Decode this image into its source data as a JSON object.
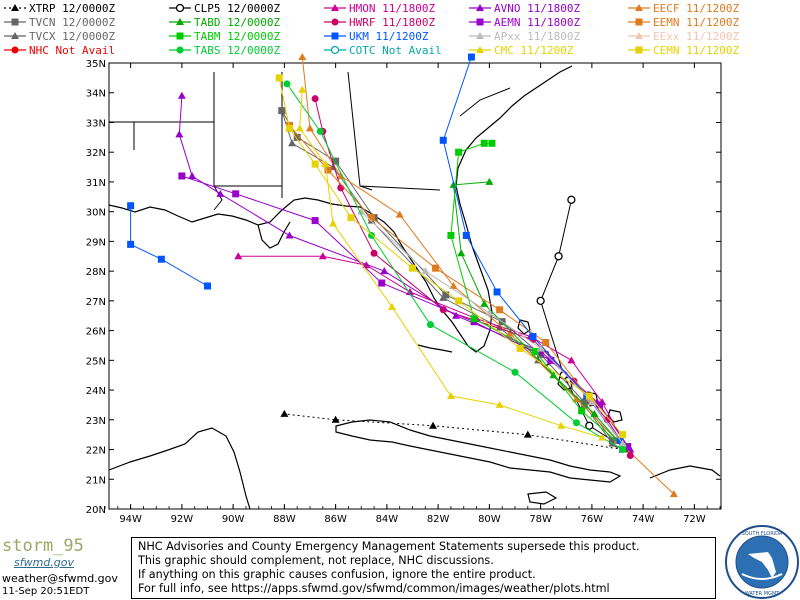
{
  "legend": [
    {
      "label": "XTRP  12/0000Z",
      "color": "#000000",
      "marker": "triangle",
      "dash": "2,3"
    },
    {
      "label": "CLP5  12/0000Z",
      "color": "#000000",
      "marker": "open-circle",
      "dash": ""
    },
    {
      "label": "HMON  11/1800Z",
      "color": "#cc0099",
      "marker": "triangle",
      "dash": ""
    },
    {
      "label": "AVNO  11/1800Z",
      "color": "#9900cc",
      "marker": "triangle",
      "dash": ""
    },
    {
      "label": "EECF  11/1200Z",
      "color": "#e07a1f",
      "marker": "triangle",
      "dash": ""
    },
    {
      "label": "TVCN  12/0000Z",
      "color": "#666666",
      "marker": "square",
      "dash": ""
    },
    {
      "label": "TABD  12/0000Z",
      "color": "#00aa00",
      "marker": "triangle",
      "dash": ""
    },
    {
      "label": "HWRF  11/1800Z",
      "color": "#cc0066",
      "marker": "circle",
      "dash": ""
    },
    {
      "label": "AEMN  11/1800Z",
      "color": "#9900cc",
      "marker": "square",
      "dash": ""
    },
    {
      "label": "EEMN  11/1200Z",
      "color": "#e07a1f",
      "marker": "square",
      "dash": ""
    },
    {
      "label": "TVCX  12/0000Z",
      "color": "#666666",
      "marker": "triangle",
      "dash": ""
    },
    {
      "label": "TABM  12/0000Z",
      "color": "#00cc00",
      "marker": "square",
      "dash": ""
    },
    {
      "label": "UKM   11/1200Z",
      "color": "#0055ff",
      "marker": "square",
      "dash": ""
    },
    {
      "label": "APxx  11/1800Z",
      "color": "#bbbbbb",
      "marker": "triangle",
      "dash": ""
    },
    {
      "label": "EExx  11/1200Z",
      "color": "#f4c6b0",
      "marker": "triangle",
      "dash": ""
    },
    {
      "label": "NHC Not Avail",
      "color": "#ee0000",
      "marker": "circle",
      "dash": ""
    },
    {
      "label": "TABS  12/0000Z",
      "color": "#00cc33",
      "marker": "circle",
      "dash": ""
    },
    {
      "label": "COTC  Not Avail",
      "color": "#00aaaa",
      "marker": "open-circle",
      "dash": ""
    },
    {
      "label": "CMC   11/1200Z",
      "color": "#e6d200",
      "marker": "triangle",
      "dash": ""
    },
    {
      "label": "CEMN  11/1200Z",
      "color": "#e6d200",
      "marker": "square",
      "dash": ""
    }
  ],
  "axes": {
    "lon_labels": [
      "94W",
      "92W",
      "90W",
      "88W",
      "86W",
      "84W",
      "82W",
      "80W",
      "78W",
      "76W",
      "74W",
      "72W"
    ],
    "lat_labels": [
      "35N",
      "34N",
      "33N",
      "32N",
      "31N",
      "30N",
      "29N",
      "28N",
      "27N",
      "26N",
      "25N",
      "24N",
      "23N",
      "22N",
      "21N",
      "20N"
    ],
    "lon_range": [
      -95,
      -71
    ],
    "lat_range": [
      20,
      35
    ]
  },
  "tracks": [
    {
      "model": "XTRP",
      "color": "#000000",
      "dash": "2,3",
      "marker": "triangle",
      "points": [
        [
          -74.8,
          22.0
        ],
        [
          -78.5,
          22.5
        ],
        [
          -82.2,
          22.8
        ],
        [
          -86.0,
          23.0
        ],
        [
          -88.0,
          23.2
        ]
      ]
    },
    {
      "model": "CLP5",
      "color": "#000000",
      "dash": "",
      "marker": "open-circle",
      "points": [
        [
          -75.0,
          22.2
        ],
        [
          -76.1,
          22.8
        ],
        [
          -77.1,
          24.5
        ],
        [
          -78.0,
          27.0
        ],
        [
          -77.3,
          28.5
        ],
        [
          -76.8,
          30.4
        ]
      ]
    },
    {
      "model": "TVCN",
      "color": "#666666",
      "dash": "",
      "marker": "square",
      "points": [
        [
          -75.2,
          22.3
        ],
        [
          -76.3,
          23.6
        ],
        [
          -78.0,
          25.2
        ],
        [
          -79.5,
          26.3
        ],
        [
          -81.7,
          27.2
        ],
        [
          -84.5,
          29.8
        ],
        [
          -86.0,
          31.7
        ],
        [
          -87.5,
          32.5
        ],
        [
          -88.1,
          33.4
        ]
      ]
    },
    {
      "model": "TVCX",
      "color": "#666666",
      "dash": "",
      "marker": "triangle",
      "points": [
        [
          -75.2,
          22.2
        ],
        [
          -76.3,
          23.5
        ],
        [
          -78.1,
          25.0
        ],
        [
          -79.6,
          26.1
        ],
        [
          -81.8,
          27.1
        ],
        [
          -84.6,
          29.7
        ],
        [
          -86.1,
          31.5
        ],
        [
          -87.7,
          32.3
        ],
        [
          -88.1,
          33.4
        ]
      ]
    },
    {
      "model": "HMON",
      "color": "#cc0099",
      "dash": "",
      "marker": "triangle",
      "points": [
        [
          -74.6,
          22.0
        ],
        [
          -75.6,
          23.6
        ],
        [
          -76.8,
          25.0
        ],
        [
          -78.4,
          25.8
        ],
        [
          -80.5,
          26.4
        ],
        [
          -83.1,
          27.3
        ],
        [
          -84.8,
          28.2
        ],
        [
          -86.5,
          28.5
        ],
        [
          -89.8,
          28.5
        ]
      ]
    },
    {
      "model": "AVNO",
      "color": "#9900cc",
      "dash": "",
      "marker": "triangle",
      "points": [
        [
          -74.5,
          22.0
        ],
        [
          -75.8,
          23.6
        ],
        [
          -78.0,
          25.3
        ],
        [
          -81.3,
          26.5
        ],
        [
          -84.1,
          28.0
        ],
        [
          -87.8,
          29.2
        ],
        [
          -90.5,
          30.6
        ],
        [
          -91.6,
          31.2
        ],
        [
          -92.1,
          32.6
        ],
        [
          -92.0,
          33.9
        ]
      ]
    },
    {
      "model": "EECF",
      "color": "#e07a1f",
      "dash": "",
      "marker": "triangle",
      "points": [
        [
          -72.8,
          20.5
        ],
        [
          -75.0,
          22.3
        ],
        [
          -76.6,
          23.7
        ],
        [
          -79.2,
          25.9
        ],
        [
          -81.4,
          27.5
        ],
        [
          -83.5,
          29.9
        ],
        [
          -85.8,
          31.2
        ],
        [
          -87.0,
          32.8
        ],
        [
          -87.3,
          35.2
        ]
      ]
    },
    {
      "model": "TABD",
      "color": "#00aa00",
      "dash": "",
      "marker": "triangle",
      "points": [
        [
          -74.7,
          22.0
        ],
        [
          -75.9,
          23.2
        ],
        [
          -77.5,
          24.5
        ],
        [
          -80.2,
          26.9
        ],
        [
          -81.1,
          28.6
        ],
        [
          -81.4,
          30.9
        ],
        [
          -80.0,
          31.0
        ]
      ]
    },
    {
      "model": "HWRF",
      "color": "#cc0066",
      "dash": "",
      "marker": "circle",
      "points": [
        [
          -74.5,
          21.8
        ],
        [
          -75.4,
          23.0
        ],
        [
          -76.7,
          24.3
        ],
        [
          -78.3,
          25.7
        ],
        [
          -81.8,
          26.7
        ],
        [
          -84.5,
          28.6
        ],
        [
          -85.8,
          30.8
        ],
        [
          -86.5,
          32.7
        ],
        [
          -86.8,
          33.8
        ]
      ]
    },
    {
      "model": "AEMN",
      "color": "#9900cc",
      "dash": "",
      "marker": "square",
      "points": [
        [
          -74.6,
          22.1
        ],
        [
          -75.7,
          23.5
        ],
        [
          -77.6,
          25.0
        ],
        [
          -80.6,
          26.3
        ],
        [
          -84.2,
          27.6
        ],
        [
          -86.8,
          29.7
        ],
        [
          -89.9,
          30.6
        ],
        [
          -92.0,
          31.2
        ]
      ]
    },
    {
      "model": "EEMN",
      "color": "#e07a1f",
      "dash": "",
      "marker": "square",
      "points": [
        [
          -74.9,
          22.3
        ],
        [
          -76.0,
          23.6
        ],
        [
          -77.8,
          25.6
        ],
        [
          -79.6,
          26.7
        ],
        [
          -82.1,
          28.1
        ],
        [
          -84.6,
          29.8
        ],
        [
          -86.3,
          31.4
        ],
        [
          -87.8,
          32.9
        ]
      ]
    },
    {
      "model": "TABM",
      "color": "#00cc00",
      "dash": "",
      "marker": "square",
      "points": [
        [
          -74.8,
          22.1
        ],
        [
          -76.4,
          23.3
        ],
        [
          -78.2,
          25.3
        ],
        [
          -80.6,
          26.4
        ],
        [
          -81.5,
          29.2
        ],
        [
          -81.2,
          32.0
        ],
        [
          -80.2,
          32.3
        ],
        [
          -79.9,
          32.3
        ]
      ]
    },
    {
      "model": "UKM",
      "color": "#0055ff",
      "dash": "",
      "marker": "square",
      "points": [
        [
          -74.9,
          22.3
        ],
        [
          -76.2,
          23.8
        ],
        [
          -78.3,
          25.8
        ],
        [
          -79.7,
          27.3
        ],
        [
          -80.9,
          29.2
        ],
        [
          -81.8,
          32.4
        ],
        [
          -80.7,
          35.2
        ]
      ]
    },
    {
      "model": "UKM-W",
      "color": "#0055ff",
      "dash": "",
      "marker": "square",
      "points": [
        [
          -91.0,
          27.5
        ],
        [
          -92.8,
          28.4
        ],
        [
          -94.0,
          28.9
        ],
        [
          -94.0,
          30.2
        ]
      ]
    },
    {
      "model": "APxx",
      "color": "#bbbbbb",
      "dash": "",
      "marker": "triangle",
      "points": [
        [
          -74.8,
          22.2
        ],
        [
          -76.0,
          23.6
        ],
        [
          -78.0,
          25.4
        ],
        [
          -80.0,
          26.6
        ],
        [
          -82.5,
          28.0
        ],
        [
          -85.0,
          30.0
        ]
      ]
    },
    {
      "model": "TABS",
      "color": "#00cc33",
      "dash": "",
      "marker": "circle",
      "points": [
        [
          -74.8,
          22.0
        ],
        [
          -76.6,
          22.9
        ],
        [
          -79.0,
          24.6
        ],
        [
          -82.3,
          26.2
        ],
        [
          -84.6,
          29.2
        ],
        [
          -86.6,
          32.7
        ],
        [
          -87.9,
          34.3
        ]
      ]
    },
    {
      "model": "CMC",
      "color": "#e6d200",
      "dash": "",
      "marker": "triangle",
      "points": [
        [
          -75.6,
          22.4
        ],
        [
          -77.2,
          22.8
        ],
        [
          -79.6,
          23.5
        ],
        [
          -81.5,
          23.8
        ],
        [
          -83.8,
          26.8
        ],
        [
          -86.1,
          29.6
        ],
        [
          -86.4,
          31.6
        ],
        [
          -87.4,
          32.8
        ],
        [
          -87.3,
          34.1
        ]
      ]
    },
    {
      "model": "CEMN",
      "color": "#e6d200",
      "dash": "",
      "marker": "square",
      "points": [
        [
          -74.8,
          22.5
        ],
        [
          -76.1,
          23.8
        ],
        [
          -78.8,
          25.4
        ],
        [
          -81.2,
          27.0
        ],
        [
          -83.0,
          28.1
        ],
        [
          -85.4,
          29.8
        ],
        [
          -86.8,
          31.6
        ],
        [
          -87.8,
          32.8
        ],
        [
          -88.2,
          34.5
        ]
      ]
    }
  ],
  "disclaimer": {
    "line1": "NHC Advisories and County Emergency Management Statements supersede this product.",
    "line2": "This graphic should complement, not replace, NHC discussions.",
    "line3": "If anything on this graphic causes confusion, ignore the entire product.",
    "line4": "For full info, see  https://apps.sfwmd.gov/sfwmd/common/images/weather/plots.html"
  },
  "branding": {
    "logo_text": "storm_95",
    "logo_sub": "sfwmd.gov",
    "email": "weather@sfwmd.gov",
    "timestamp": "11-Sep 20:51EDT",
    "seal_text": "SOUTH FLORIDA WATER MANAGEMENT DISTRICT"
  }
}
